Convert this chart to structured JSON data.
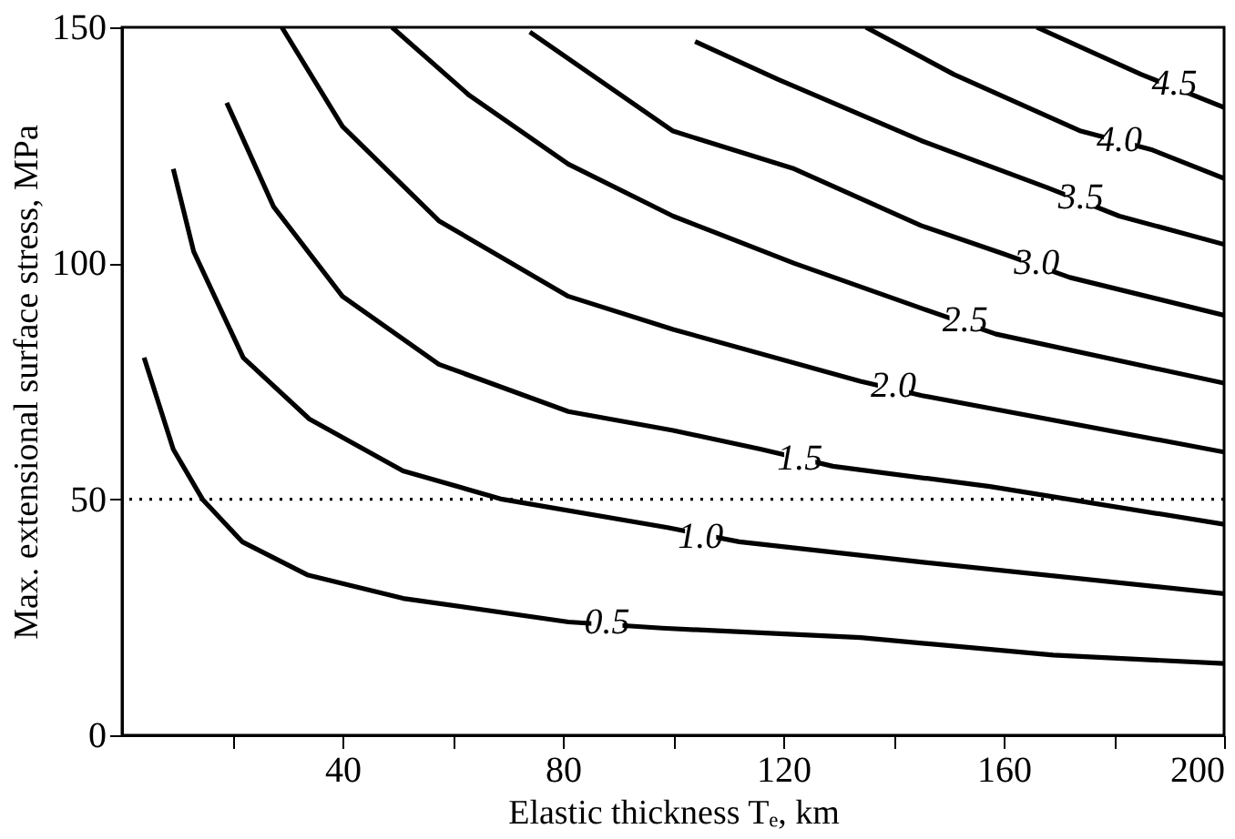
{
  "chart_data": {
    "type": "line",
    "xlabel": "Elastic thickness Tₑ, km",
    "ylabel": "Max. extensional surface stress, MPa",
    "xlim": [
      0,
      200
    ],
    "ylim": [
      0,
      150
    ],
    "xticks": [
      {
        "value": 20,
        "label": null
      },
      40,
      {
        "value": 60,
        "label": null
      },
      80,
      {
        "value": 100,
        "label": null
      },
      120,
      {
        "value": 140,
        "label": null
      },
      160,
      {
        "value": 180,
        "label": null
      },
      200
    ],
    "yticks": [
      0,
      50,
      100,
      150
    ],
    "grid": false,
    "legend": false,
    "marker": "none",
    "line_style": "solid",
    "series": [
      {
        "color": "#000000",
        "x": [
          4,
          9.3,
          14.6,
          21.8,
          33.6,
          51,
          81,
          98,
          134,
          169,
          200
        ],
        "values": [
          80,
          60.6,
          50,
          41,
          34,
          29,
          24,
          22.7,
          20.7,
          17,
          15.2
        ]
      },
      {
        "color": "#000000",
        "x": [
          9.3,
          13,
          22,
          34,
          51,
          69,
          99,
          112,
          145,
          200
        ],
        "values": [
          120,
          102.5,
          80,
          67,
          56,
          50,
          44,
          41,
          36.7,
          30
        ]
      },
      {
        "color": "#000000",
        "x": [
          19,
          27.5,
          40,
          57.5,
          81,
          100,
          116,
          129,
          157.5,
          200
        ],
        "values": [
          134,
          112,
          93,
          78.6,
          68.6,
          64.6,
          60.6,
          57,
          52.7,
          44.7
        ]
      },
      {
        "color": "#000000",
        "x": [
          29,
          40,
          57.5,
          81,
          100,
          134,
          145,
          200
        ],
        "values": [
          150,
          129,
          109,
          93,
          86,
          75,
          72,
          60
        ]
      },
      {
        "color": "#000000",
        "x": [
          49,
          63,
          81,
          100,
          122,
          145,
          158.6,
          200
        ],
        "values": [
          150,
          135.6,
          121,
          110,
          100,
          90.5,
          85,
          74.6
        ]
      },
      {
        "color": "#000000",
        "x": [
          74,
          100,
          122,
          145,
          160,
          172,
          200
        ],
        "values": [
          149,
          128,
          120,
          108,
          102,
          97,
          89
        ]
      },
      {
        "color": "#000000",
        "x": [
          104,
          119,
          145,
          168,
          181,
          200
        ],
        "values": [
          147,
          139,
          126,
          116,
          110,
          104
        ]
      },
      {
        "color": "#000000",
        "x": [
          135,
          151,
          174,
          187,
          200
        ],
        "values": [
          150,
          140,
          128,
          124,
          118
        ]
      },
      {
        "color": "#000000",
        "x": [
          166,
          185,
          200
        ],
        "values": [
          150,
          140,
          133
        ]
      }
    ],
    "ref_lines": [
      {
        "axis": "y",
        "value": 50,
        "color": "#000000",
        "line_style": "dotted"
      }
    ],
    "annotations": [
      {
        "text": "0.5",
        "x": 88,
        "y": 24
      },
      {
        "text": "1.0",
        "x": 105,
        "y": 42
      },
      {
        "text": "1.5",
        "x": 123,
        "y": 58.6
      },
      {
        "text": "2.0",
        "x": 140,
        "y": 74
      },
      {
        "text": "2.5",
        "x": 153,
        "y": 88
      },
      {
        "text": "3.0",
        "x": 166,
        "y": 100
      },
      {
        "text": "3.5",
        "x": 174,
        "y": 114
      },
      {
        "text": "4.0",
        "x": 181,
        "y": 126
      },
      {
        "text": "4.5",
        "x": 191,
        "y": 138
      }
    ]
  }
}
